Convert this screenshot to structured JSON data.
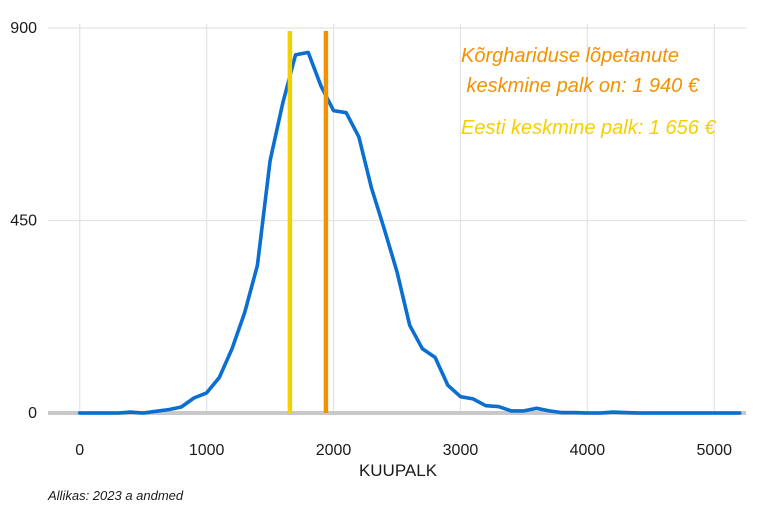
{
  "chart_data": {
    "type": "line",
    "title": "",
    "xlabel": "KUUPALK",
    "ylabel": "",
    "xlim": [
      -250,
      5250
    ],
    "ylim": [
      0,
      900
    ],
    "xticks": [
      0,
      1000,
      2000,
      3000,
      4000,
      5000
    ],
    "yticks": [
      0,
      450,
      900
    ],
    "grid": true,
    "series": [
      {
        "color": "#0a6fd1",
        "x": [
          0,
          100,
          200,
          300,
          400,
          500,
          600,
          700,
          800,
          900,
          1000,
          1100,
          1200,
          1300,
          1400,
          1500,
          1600,
          1700,
          1800,
          1900,
          2000,
          2100,
          2200,
          2300,
          2400,
          2500,
          2600,
          2700,
          2800,
          2900,
          3000,
          3100,
          3200,
          3300,
          3400,
          3500,
          3600,
          3700,
          3800,
          3900,
          4000,
          4100,
          4200,
          4300,
          4400,
          4500,
          4600,
          4700,
          4800,
          4900,
          5000,
          5100,
          5200
        ],
        "y": [
          0,
          0,
          0,
          0,
          2,
          0,
          4,
          8,
          14,
          35,
          47,
          83,
          150,
          235,
          345,
          590,
          725,
          837,
          843,
          765,
          707,
          702,
          645,
          525,
          430,
          330,
          205,
          150,
          130,
          65,
          38,
          33,
          17,
          15,
          5,
          5,
          11,
          5,
          1,
          1,
          0,
          0,
          2,
          1,
          0,
          0,
          0,
          0,
          0,
          0,
          0,
          0,
          0
        ]
      }
    ],
    "vlines": [
      {
        "x": 1656,
        "color": "#f5d000"
      },
      {
        "x": 1940,
        "color": "#f39200"
      }
    ],
    "annotations": [
      {
        "lines": [
          "Kõrghariduse lõpetanute",
          " keskmine palk on: 1 940 €"
        ],
        "color": "#f39200"
      },
      {
        "lines": [
          "Eesti keskmine palk: 1 656 €"
        ],
        "color": "#f5d000"
      }
    ],
    "source": "Allikas: 2023 a andmed"
  }
}
